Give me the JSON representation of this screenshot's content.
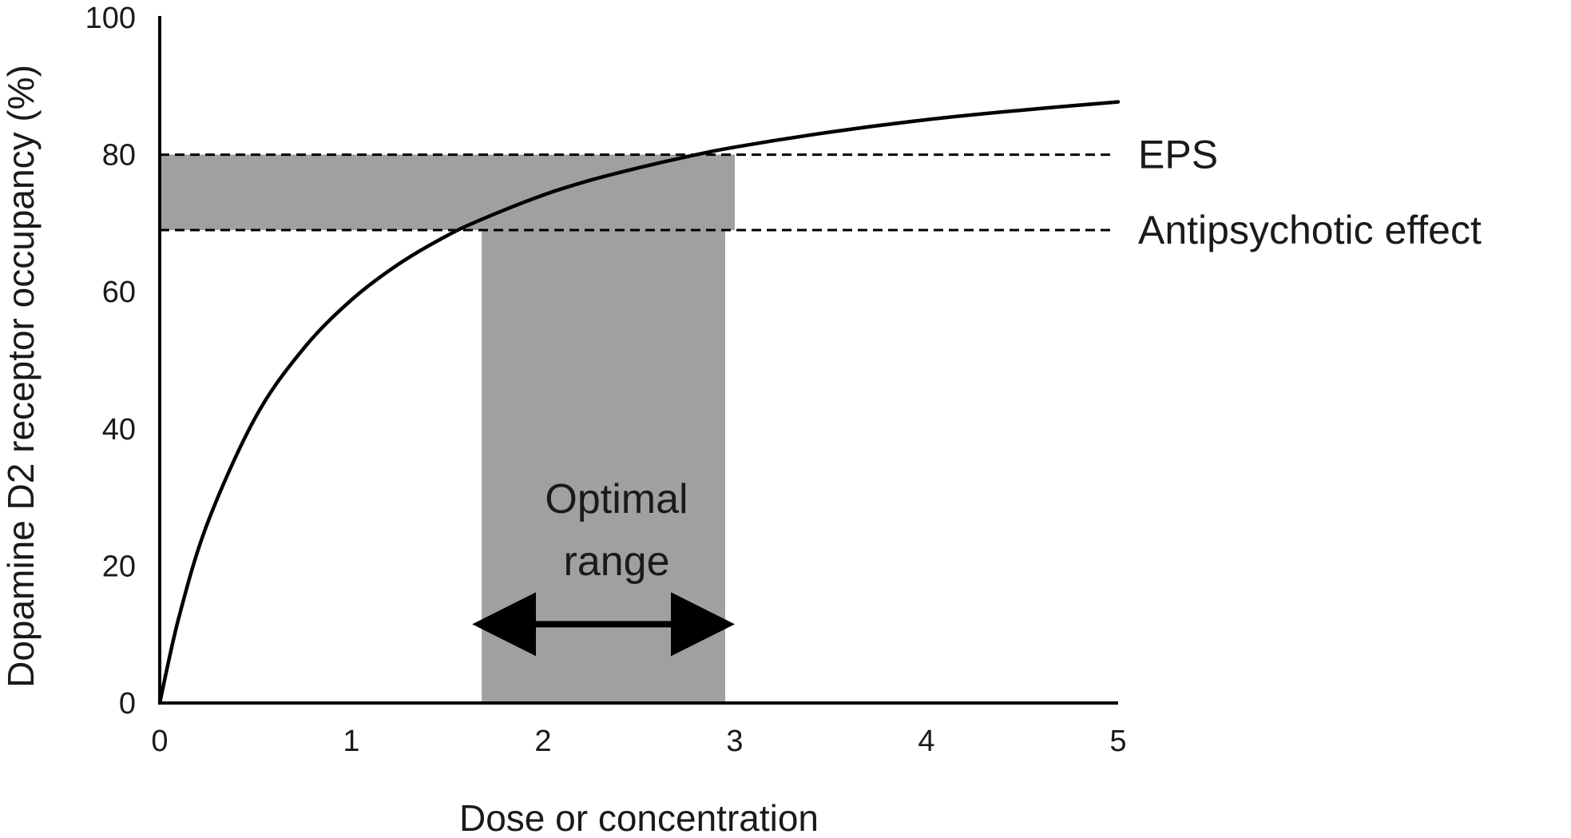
{
  "chart_data": {
    "type": "line",
    "title": "",
    "xlabel": "Dose or concentration",
    "ylabel": "Dopamine D2 receptor occupancy (%)",
    "xlim": [
      0,
      5
    ],
    "ylim": [
      0,
      100
    ],
    "x_ticks": [
      "0",
      "1",
      "2",
      "3",
      "4",
      "5"
    ],
    "y_ticks": [
      "0",
      "20",
      "40",
      "60",
      "80",
      "100"
    ],
    "grid": false,
    "legend": "none",
    "series": [
      {
        "color": "#000000",
        "x": [
          0,
          0.1,
          0.25,
          0.5,
          0.75,
          1,
          1.25,
          1.5,
          1.7,
          2,
          2.25,
          2.5,
          2.75,
          3,
          3.5,
          4,
          4.5,
          5
        ],
        "y": [
          0,
          12.5,
          26.3,
          41.7,
          51.7,
          58.8,
          64.1,
          68.2,
          70.8,
          74.1,
          76.3,
          78.1,
          79.7,
          81.1,
          83.3,
          85.1,
          86.5,
          87.7
        ]
      }
    ],
    "reference_lines": [
      {
        "label": "EPS",
        "y": 80,
        "style": "dashed"
      },
      {
        "label": "Antipsychotic effect",
        "y": 69,
        "style": "dashed"
      }
    ],
    "shaded_regions": {
      "color": "#a0a0a0",
      "horizontal_band": {
        "y_from": 69,
        "y_to": 80,
        "x_from": 0,
        "x_to": 3
      },
      "vertical_band": {
        "x_from": 1.68,
        "x_to": 2.95,
        "y_from": 0,
        "y_to": 69
      }
    },
    "annotations": [
      {
        "text_lines": [
          "Optimal",
          "range"
        ],
        "x": 2.3,
        "y": 30
      }
    ],
    "double_arrow": {
      "x_from": 1.68,
      "x_to": 2.95,
      "y": 11.5
    }
  }
}
